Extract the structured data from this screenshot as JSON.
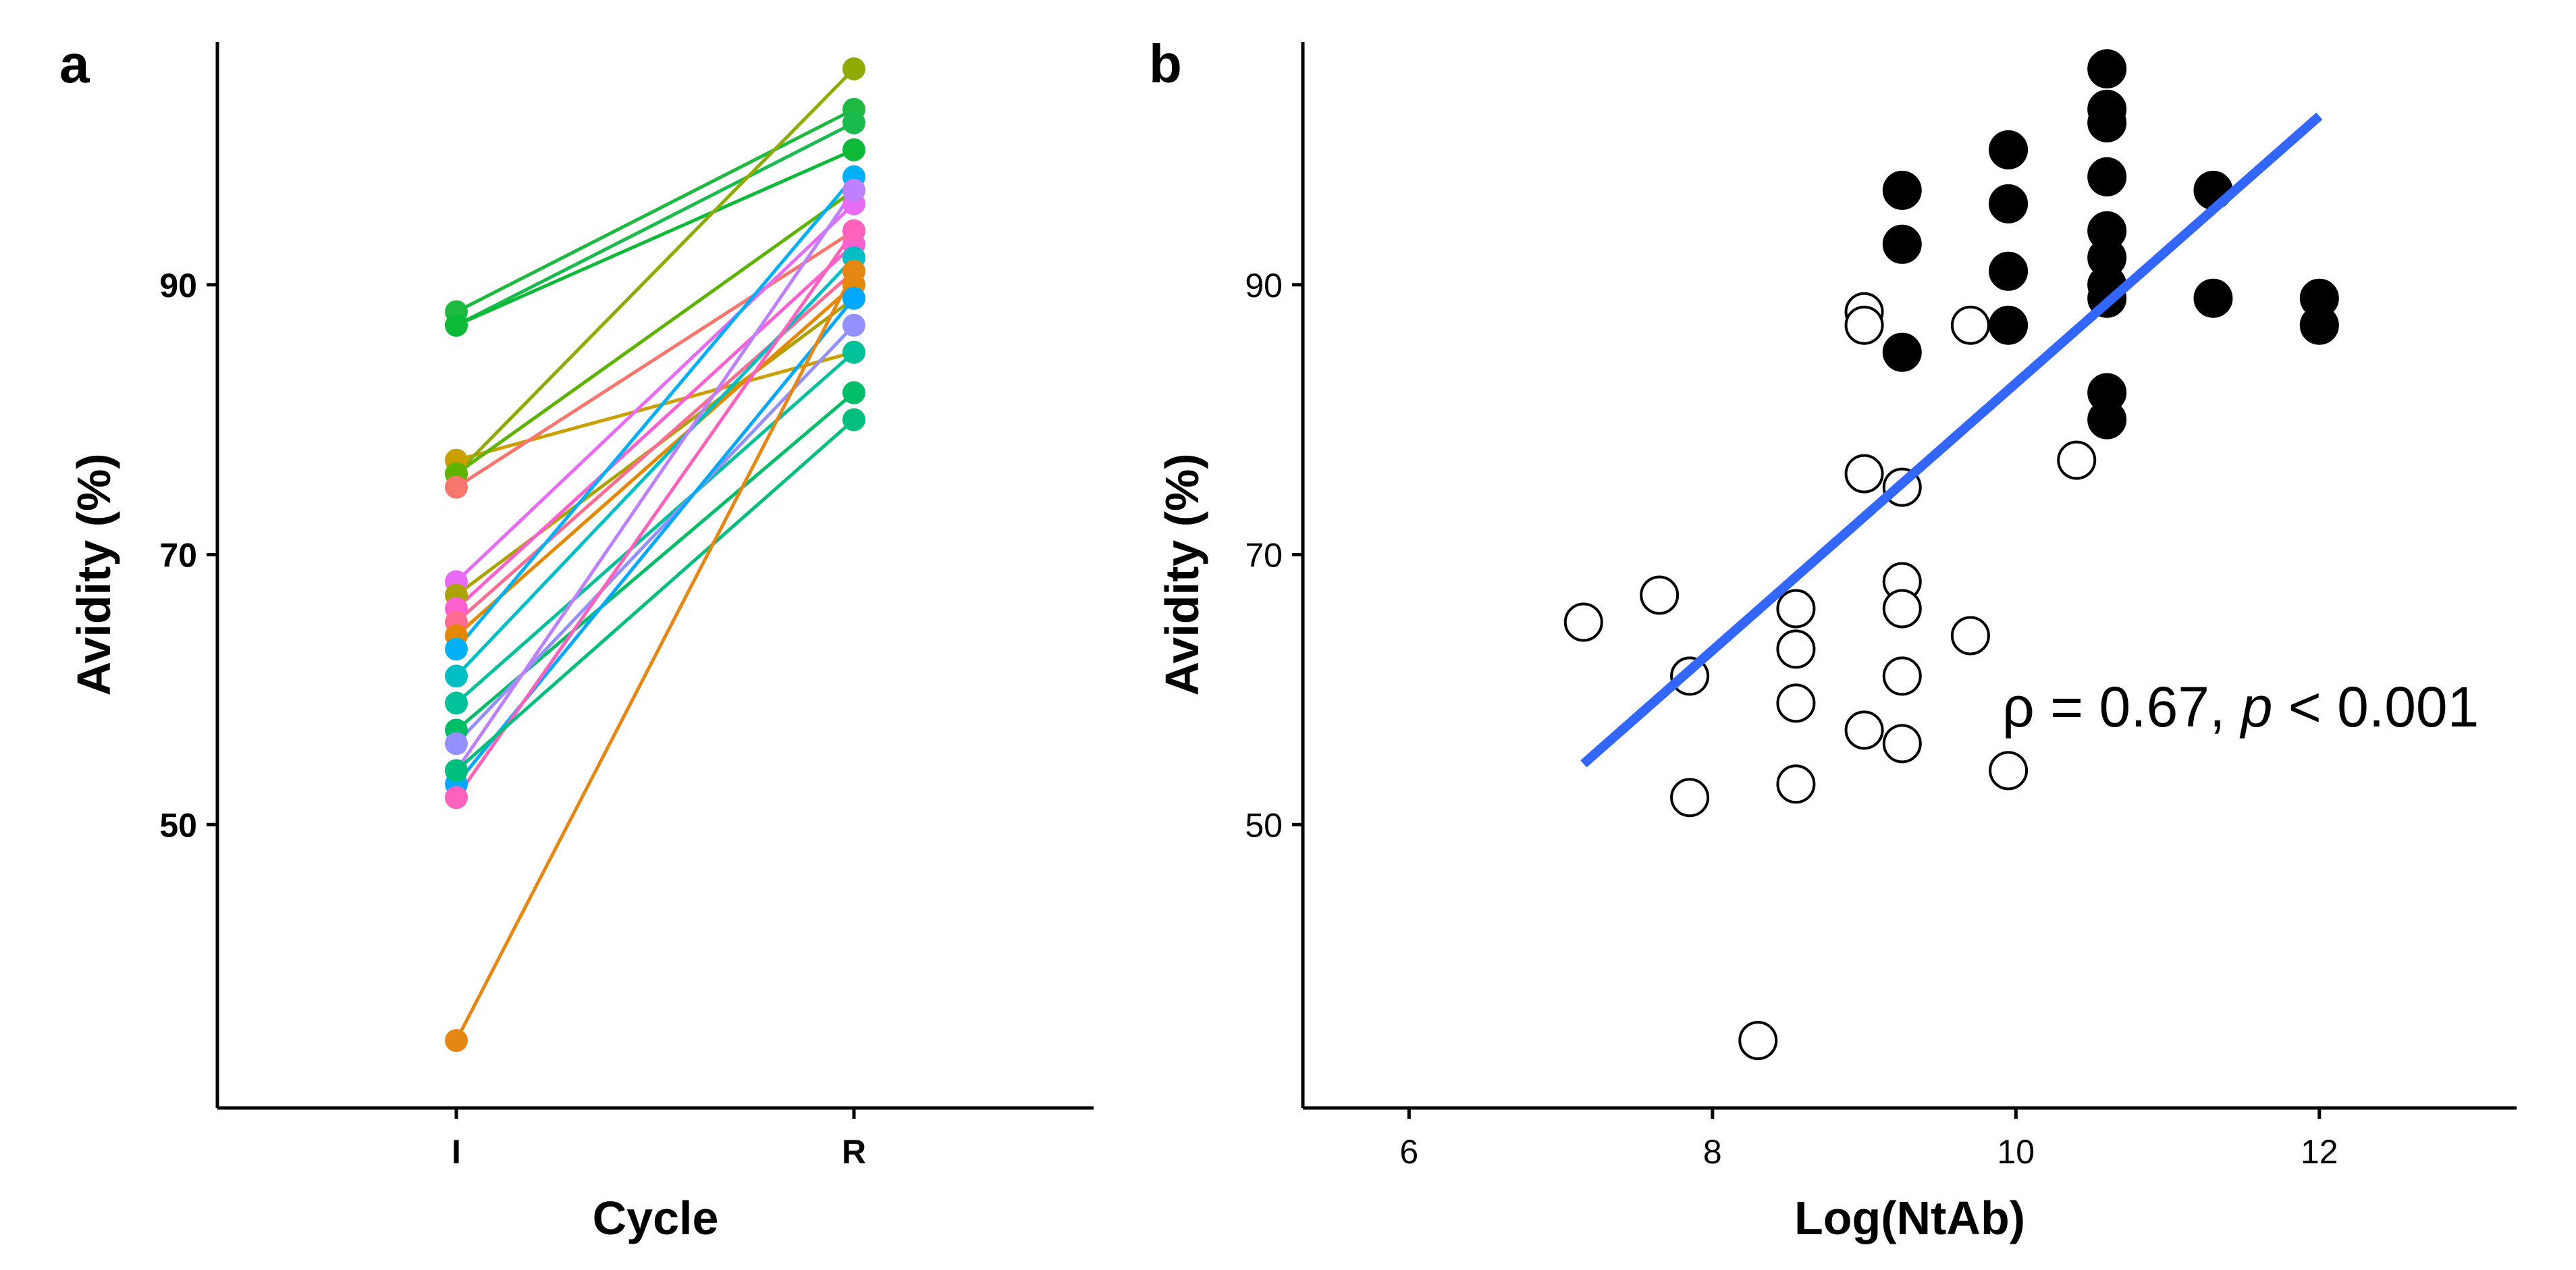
{
  "chart_data": [
    {
      "panel": "a",
      "type": "line",
      "xlabel": "Cycle",
      "ylabel": "Avidity (%)",
      "categories": [
        "I",
        "R"
      ],
      "yticks": [
        50,
        70,
        90
      ],
      "ylim": [
        29,
        108
      ],
      "legend": "none",
      "grid": false,
      "series": [
        {
          "values": [
            88,
            103
          ],
          "color": "#1DB940"
        },
        {
          "values": [
            87,
            102
          ],
          "color": "#19BA4E"
        },
        {
          "values": [
            87,
            100
          ],
          "color": "#0CBA38"
        },
        {
          "values": [
            77,
            85
          ],
          "color": "#C9A000"
        },
        {
          "values": [
            76,
            106
          ],
          "color": "#8FAA00"
        },
        {
          "values": [
            76,
            97
          ],
          "color": "#5DB300"
        },
        {
          "values": [
            75,
            94
          ],
          "color": "#F8766D"
        },
        {
          "values": [
            68,
            96
          ],
          "color": "#E76BF3"
        },
        {
          "values": [
            67,
            89
          ],
          "color": "#ABA300"
        },
        {
          "values": [
            66,
            93
          ],
          "color": "#FD61D1"
        },
        {
          "values": [
            65,
            91
          ],
          "color": "#FF6C91"
        },
        {
          "values": [
            64,
            90
          ],
          "color": "#E58700"
        },
        {
          "values": [
            63,
            98
          ],
          "color": "#00B0F6"
        },
        {
          "values": [
            61,
            92
          ],
          "color": "#00BFC4"
        },
        {
          "values": [
            59,
            85
          ],
          "color": "#00C19A"
        },
        {
          "values": [
            57,
            82
          ],
          "color": "#00BE67"
        },
        {
          "values": [
            56,
            87
          ],
          "color": "#9590FF"
        },
        {
          "values": [
            54,
            97
          ],
          "color": "#BE80FF"
        },
        {
          "values": [
            53,
            89
          ],
          "color": "#00A9FF"
        },
        {
          "values": [
            52,
            94
          ],
          "color": "#FF62BC"
        },
        {
          "values": [
            54,
            80
          ],
          "color": "#00BF7D"
        },
        {
          "values": [
            34,
            91
          ],
          "color": "#E68613"
        }
      ]
    },
    {
      "panel": "b",
      "type": "scatter",
      "xlabel": "Log(NtAb)",
      "ylabel": "Avidity (%)",
      "xticks": [
        6,
        8,
        10,
        12
      ],
      "yticks": [
        50,
        70,
        90
      ],
      "xlim": [
        5.3,
        13.3
      ],
      "ylim": [
        29,
        108
      ],
      "legend": "none",
      "grid": false,
      "annotation": {
        "prefix": "ρ = 0.67, ",
        "p": "p",
        "suffix": " < 0.001"
      },
      "regression_line": {
        "x": [
          7.15,
          12.0
        ],
        "y": [
          54.5,
          102.5
        ],
        "color": "#3366FF"
      },
      "series": [
        {
          "marker": "open-circle",
          "points": [
            [
              7.15,
              65
            ],
            [
              7.65,
              67
            ],
            [
              7.85,
              61
            ],
            [
              7.85,
              52
            ],
            [
              8.3,
              34
            ],
            [
              8.55,
              66
            ],
            [
              8.55,
              63
            ],
            [
              8.55,
              59
            ],
            [
              8.55,
              53
            ],
            [
              9.0,
              88
            ],
            [
              9.0,
              87
            ],
            [
              9.0,
              76
            ],
            [
              9.0,
              57
            ],
            [
              9.25,
              75
            ],
            [
              9.25,
              68
            ],
            [
              9.25,
              66
            ],
            [
              9.25,
              61
            ],
            [
              9.25,
              56
            ],
            [
              9.7,
              87
            ],
            [
              9.7,
              64
            ],
            [
              9.95,
              54
            ],
            [
              10.4,
              77
            ]
          ]
        },
        {
          "marker": "filled-circle",
          "points": [
            [
              9.25,
              97
            ],
            [
              9.25,
              93
            ],
            [
              9.25,
              85
            ],
            [
              9.95,
              100
            ],
            [
              9.95,
              96
            ],
            [
              9.95,
              91
            ],
            [
              9.95,
              87
            ],
            [
              10.6,
              106
            ],
            [
              10.6,
              103
            ],
            [
              10.6,
              102
            ],
            [
              10.6,
              98
            ],
            [
              10.6,
              94
            ],
            [
              10.6,
              92
            ],
            [
              10.6,
              90
            ],
            [
              10.6,
              89
            ],
            [
              10.6,
              82
            ],
            [
              10.6,
              80
            ],
            [
              11.3,
              97
            ],
            [
              11.3,
              89
            ],
            [
              12.0,
              89
            ],
            [
              12.0,
              87
            ]
          ]
        }
      ]
    }
  ]
}
